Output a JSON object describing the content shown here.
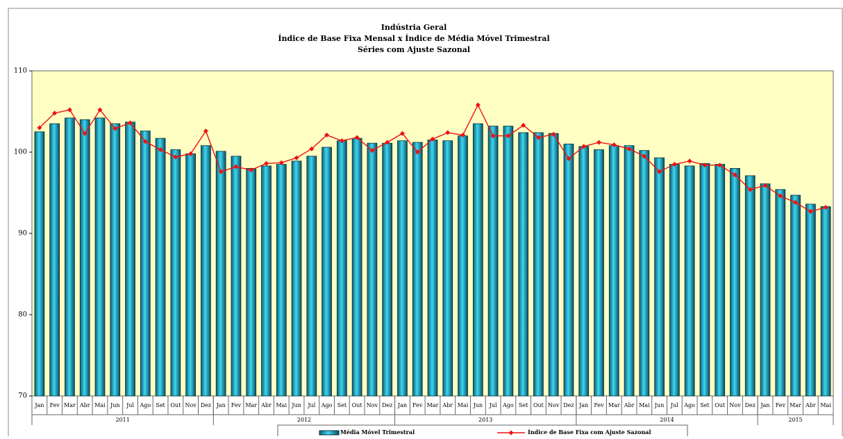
{
  "chart_data": {
    "type": "bar_line",
    "title": "Indústria Geral",
    "subtitle": "Índice de Base Fixa Mensal x Índice de Média Móvel Trimestral",
    "subtitle2": "Séries com Ajuste Sazonal",
    "categories": [
      "Jan",
      "Fev",
      "Mar",
      "Abr",
      "Mai",
      "Jun",
      "Jul",
      "Ago",
      "Set",
      "Out",
      "Nov",
      "Dez",
      "Jan",
      "Fev",
      "Mar",
      "Abr",
      "Mai",
      "Jun",
      "Jul",
      "Ago",
      "Set",
      "Out",
      "Nov",
      "Dez",
      "Jan",
      "Fev",
      "Mar",
      "Abr",
      "Mai",
      "Jun",
      "Jul",
      "Ago",
      "Set",
      "Out",
      "Nov",
      "Dez",
      "Jan",
      "Fev",
      "Mar",
      "Abr",
      "Mai",
      "Jun",
      "Jul",
      "Ago",
      "Set",
      "Out",
      "Nov",
      "Dez",
      "Jan",
      "Fev",
      "Mar",
      "Abr",
      "Mai"
    ],
    "groups": [
      "2011",
      "2012",
      "2013",
      "2014",
      "2015"
    ],
    "series": [
      {
        "name": "Média Móvel Trimestral",
        "type": "bar",
        "color": "#33ccee",
        "values": [
          102.5,
          103.5,
          104.2,
          104.0,
          104.2,
          103.5,
          103.7,
          102.6,
          101.7,
          100.3,
          99.8,
          100.8,
          100.1,
          99.5,
          98.0,
          98.3,
          98.5,
          98.9,
          99.5,
          100.6,
          101.4,
          101.7,
          101.1,
          101.1,
          101.4,
          101.2,
          101.5,
          101.4,
          102.0,
          103.5,
          103.2,
          103.2,
          102.4,
          102.4,
          102.3,
          101.0,
          100.7,
          100.3,
          100.8,
          100.8,
          100.2,
          99.3,
          98.5,
          98.3,
          98.6,
          98.5,
          98.0,
          97.1,
          96.1,
          95.4,
          94.7,
          93.6,
          93.3
        ]
      },
      {
        "name": "Índice de Base Fixa com Ajuste Sazonal",
        "type": "line",
        "color": "#ee1111",
        "values": [
          103.0,
          104.8,
          105.2,
          102.3,
          105.2,
          102.9,
          103.6,
          101.3,
          100.3,
          99.4,
          99.8,
          102.6,
          97.6,
          98.2,
          97.8,
          98.6,
          98.7,
          99.3,
          100.4,
          102.1,
          101.4,
          101.8,
          100.2,
          101.2,
          102.3,
          100.0,
          101.6,
          102.4,
          102.1,
          105.8,
          102.0,
          102.0,
          103.3,
          101.8,
          102.2,
          99.2,
          100.7,
          101.2,
          100.9,
          100.4,
          99.5,
          97.6,
          98.5,
          98.9,
          98.4,
          98.4,
          97.2,
          95.4,
          95.9,
          94.6,
          93.8,
          92.7,
          93.2
        ]
      }
    ],
    "ylim": [
      70,
      110
    ],
    "yticks": [
      70,
      80,
      90,
      100,
      110
    ],
    "plot_background": "#ffffc4"
  }
}
